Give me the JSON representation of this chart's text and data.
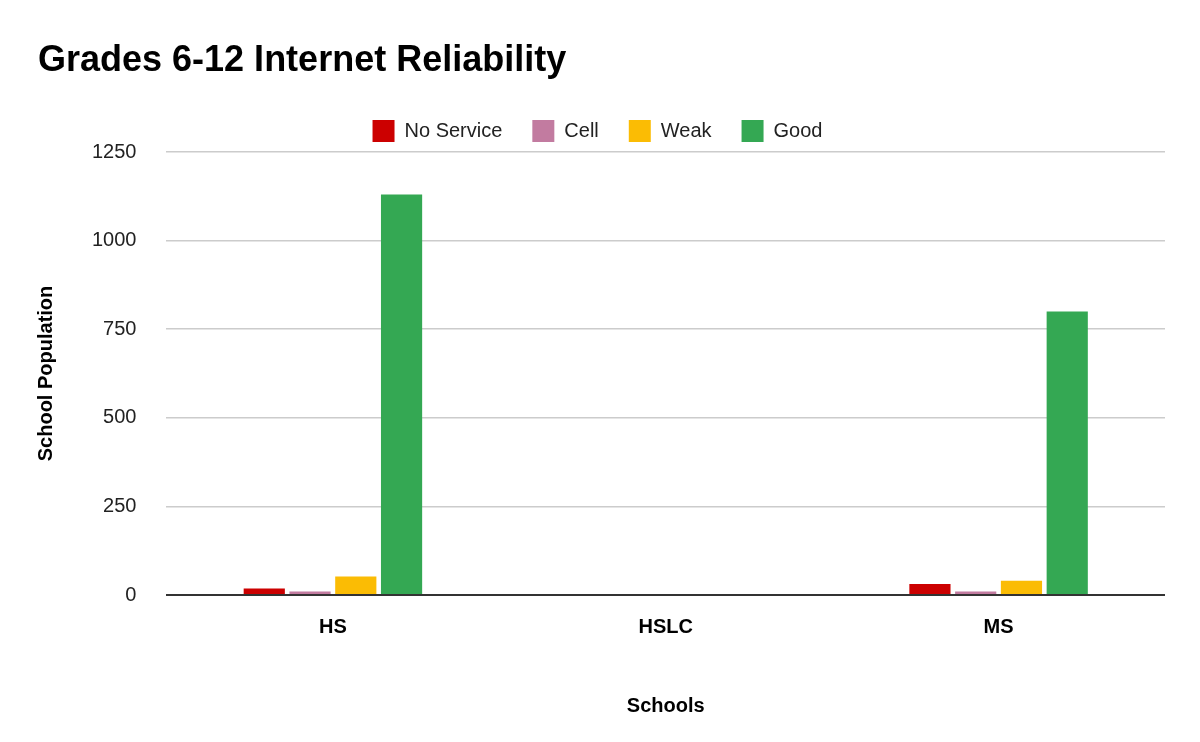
{
  "chart_data": {
    "type": "bar",
    "title": "Grades 6-12 Internet Reliability",
    "xlabel": "Schools",
    "ylabel": "School Population",
    "categories": [
      "HS",
      "HSLC",
      "MS"
    ],
    "series": [
      {
        "name": "No Service",
        "color": "#cc0000",
        "values": [
          18,
          0,
          31
        ]
      },
      {
        "name": "Cell",
        "color": "#c27ba0",
        "values": [
          10,
          0,
          10
        ]
      },
      {
        "name": "Weak",
        "color": "#fbbc04",
        "values": [
          52,
          0,
          40
        ]
      },
      {
        "name": "Good",
        "color": "#34a853",
        "values": [
          1130,
          0,
          800
        ]
      }
    ],
    "ylim": [
      0,
      1250
    ],
    "yticks": [
      0,
      250,
      500,
      750,
      1000,
      1250
    ],
    "grid": "y",
    "legend": "top"
  }
}
